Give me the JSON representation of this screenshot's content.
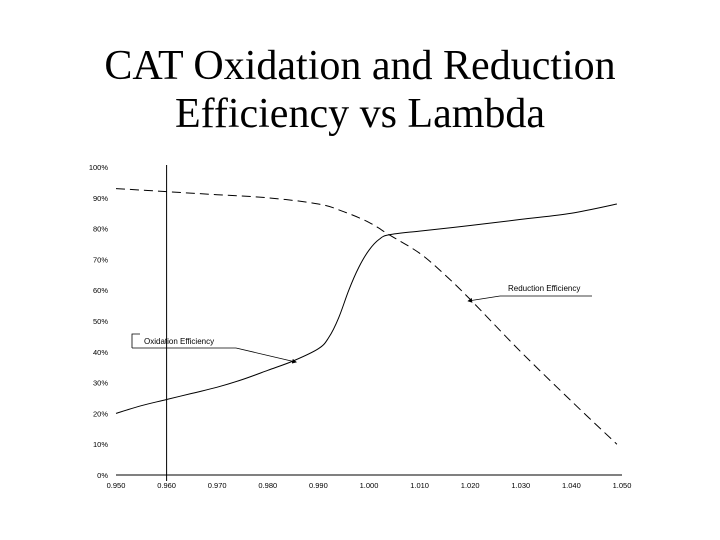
{
  "slide": {
    "title_line1": "CAT Oxidation and Reduction",
    "title_line2": "Efficiency vs Lambda"
  },
  "chart_data": {
    "type": "line",
    "title": "CAT Oxidation and Reduction Efficiency vs Lambda",
    "xlabel": "",
    "ylabel": "",
    "xlim": [
      0.95,
      1.05
    ],
    "ylim": [
      0,
      100
    ],
    "x_ticks": [
      "0.950",
      "0.960",
      "0.970",
      "0.980",
      "0.990",
      "1.000",
      "1.010",
      "1.020",
      "1.030",
      "1.040",
      "1.050"
    ],
    "y_ticks": [
      "0%",
      "10%",
      "20%",
      "30%",
      "40%",
      "50%",
      "60%",
      "70%",
      "80%",
      "90%",
      "100%"
    ],
    "grid": false,
    "series": [
      {
        "name": "Oxidation Efficiency",
        "style": "solid",
        "x": [
          0.95,
          0.955,
          0.96,
          0.965,
          0.97,
          0.975,
          0.98,
          0.985,
          0.99,
          0.992,
          0.994,
          0.996,
          0.998,
          1.0,
          1.002,
          1.004,
          1.01,
          1.02,
          1.03,
          1.04,
          1.049
        ],
        "y": [
          20,
          22.5,
          24.5,
          26.5,
          28.5,
          31,
          34,
          37,
          41,
          44.5,
          51,
          60,
          67.5,
          73,
          76.5,
          78,
          79.2,
          81,
          83,
          85,
          88
        ]
      },
      {
        "name": "Reduction Efficiency",
        "style": "dashed",
        "x": [
          0.95,
          0.96,
          0.97,
          0.98,
          0.99,
          0.995,
          1.0,
          1.004,
          1.01,
          1.015,
          1.02,
          1.03,
          1.04,
          1.049
        ],
        "y": [
          93,
          92,
          91,
          90,
          88,
          85.5,
          82,
          78,
          72,
          65,
          57,
          40,
          24,
          10
        ]
      }
    ],
    "annotations": [
      {
        "text": "Oxidation Efficiency",
        "arrow_to": [
          0.986,
          36
        ]
      },
      {
        "text": "Reduction Efficiency",
        "arrow_to": [
          1.019,
          56.5
        ]
      }
    ]
  }
}
